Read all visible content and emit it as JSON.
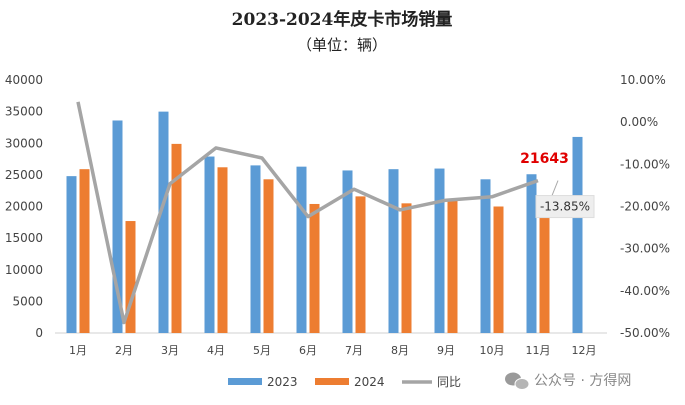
{
  "chart_data": {
    "type": "bar",
    "title": "2023-2024年皮卡市场销量",
    "subtitle": "（单位：辆）",
    "categories": [
      "1月",
      "2月",
      "3月",
      "4月",
      "5月",
      "6月",
      "7月",
      "8月",
      "9月",
      "10月",
      "11月",
      "12月"
    ],
    "series": [
      {
        "name": "2023",
        "type": "bar",
        "axis": "left",
        "color": "#5b9bd5",
        "values": [
          24800,
          33600,
          35000,
          27900,
          26500,
          26300,
          25700,
          25900,
          26000,
          24300,
          25100,
          31000
        ]
      },
      {
        "name": "2024",
        "type": "bar",
        "axis": "left",
        "color": "#ed7d31",
        "values": [
          25900,
          17700,
          29900,
          26200,
          24300,
          20400,
          21600,
          20500,
          21200,
          20000,
          21643,
          null
        ]
      },
      {
        "name": "同比",
        "type": "line",
        "axis": "right",
        "color": "#a5a5a5",
        "values": [
          4.8,
          -47.5,
          -14.6,
          -6.1,
          -8.5,
          -22.4,
          -15.9,
          -20.8,
          -18.5,
          -17.7,
          -13.85,
          null
        ]
      }
    ],
    "y_left": {
      "min": 0,
      "max": 40000,
      "step": 5000,
      "ticks": [
        "0",
        "5000",
        "10000",
        "15000",
        "20000",
        "25000",
        "30000",
        "35000",
        "40000"
      ]
    },
    "y_right": {
      "min": -50,
      "max": 10,
      "step": 10,
      "ticks": [
        "-50.00%",
        "-40.00%",
        "-30.00%",
        "-20.00%",
        "-10.00%",
        "0.00%",
        "10.00%"
      ]
    },
    "annotations": [
      {
        "text": "21643",
        "month": "11月"
      },
      {
        "text": "-13.85%",
        "month": "11月"
      }
    ],
    "legend": [
      "2023",
      "2024",
      "同比"
    ],
    "legend_position": "bottom"
  },
  "watermark": {
    "text": "公众号 · 方得网"
  }
}
